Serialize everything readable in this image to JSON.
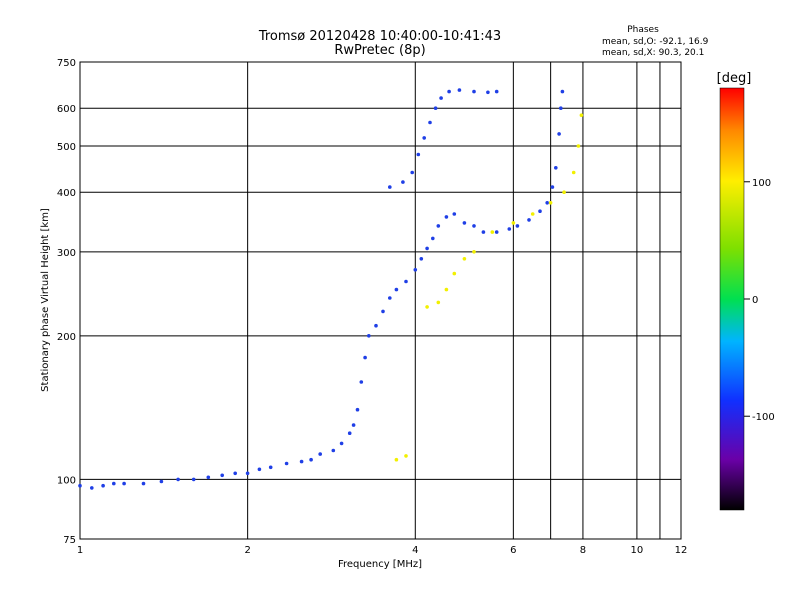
{
  "chart_data": {
    "type": "scatter",
    "title": "Tromsø 20120428 10:40:00-10:41:43",
    "subtitle": "RwPretec (8p)",
    "xlabel": "Frequency [MHz]",
    "ylabel": "Stationary phase Virtual Height [km]",
    "x_scale": "log",
    "y_scale": "log",
    "xlim": [
      1,
      12
    ],
    "ylim": [
      75,
      750
    ],
    "x_ticks": [
      1,
      2,
      4,
      6,
      8,
      10,
      12
    ],
    "x_tick_labels": [
      "1",
      "2",
      "4",
      "6",
      "8",
      "10",
      "12"
    ],
    "x_gridlines": [
      2,
      4,
      6,
      7,
      8,
      10,
      11
    ],
    "y_ticks": [
      75,
      100,
      200,
      300,
      400,
      500,
      600,
      750
    ],
    "y_tick_labels": [
      "75",
      "100",
      "200",
      "300",
      "400",
      "500",
      "600",
      "750"
    ],
    "y_gridlines": [
      100,
      200,
      300,
      400,
      500,
      600
    ],
    "grid": true,
    "phases_box": {
      "header": "Phases",
      "line1": "mean, sd,O: -92.1, 16.9",
      "line2": "mean, sd,X:  90.3, 20.1"
    },
    "colorbar": {
      "label": "[deg]",
      "min": -180,
      "max": 180,
      "ticks": [
        100,
        0,
        -100
      ],
      "tick_labels": [
        "100",
        "0",
        "-100"
      ],
      "colormap": "rainbow: black/purple (-180) → blue (-100) → cyan → green (0) → yellow (100) → orange → red (180)"
    },
    "series": [
      {
        "mode": "O",
        "phase_deg": -100,
        "color": "#1f3fe6",
        "points": [
          [
            1.0,
            97
          ],
          [
            1.05,
            96
          ],
          [
            1.1,
            97
          ],
          [
            1.15,
            98
          ],
          [
            1.2,
            98
          ],
          [
            1.3,
            98
          ],
          [
            1.4,
            99
          ],
          [
            1.5,
            100
          ],
          [
            1.6,
            100
          ],
          [
            1.7,
            101
          ],
          [
            1.8,
            102
          ],
          [
            1.9,
            103
          ],
          [
            2.0,
            103
          ],
          [
            2.1,
            105
          ],
          [
            2.2,
            106
          ],
          [
            2.35,
            108
          ],
          [
            2.5,
            109
          ],
          [
            2.6,
            110
          ],
          [
            2.7,
            113
          ],
          [
            2.85,
            115
          ],
          [
            2.95,
            119
          ],
          [
            3.05,
            125
          ],
          [
            3.1,
            130
          ],
          [
            3.15,
            140
          ],
          [
            3.2,
            160
          ],
          [
            3.25,
            180
          ],
          [
            3.3,
            200
          ],
          [
            3.4,
            210
          ],
          [
            3.5,
            225
          ],
          [
            3.6,
            240
          ],
          [
            3.7,
            250
          ],
          [
            3.85,
            260
          ],
          [
            4.0,
            275
          ],
          [
            4.1,
            290
          ],
          [
            4.2,
            305
          ],
          [
            4.3,
            320
          ],
          [
            4.4,
            340
          ],
          [
            4.55,
            355
          ],
          [
            4.7,
            360
          ],
          [
            4.9,
            345
          ],
          [
            5.1,
            340
          ],
          [
            5.3,
            330
          ],
          [
            5.6,
            330
          ],
          [
            5.9,
            335
          ],
          [
            6.1,
            340
          ],
          [
            6.4,
            350
          ],
          [
            6.7,
            365
          ],
          [
            6.9,
            380
          ],
          [
            7.05,
            410
          ],
          [
            7.15,
            450
          ],
          [
            7.25,
            530
          ],
          [
            7.3,
            600
          ],
          [
            7.35,
            650
          ],
          [
            3.6,
            410
          ],
          [
            3.8,
            420
          ],
          [
            3.95,
            440
          ],
          [
            4.05,
            480
          ],
          [
            4.15,
            520
          ],
          [
            4.25,
            560
          ],
          [
            4.35,
            600
          ],
          [
            4.45,
            630
          ],
          [
            4.6,
            650
          ],
          [
            4.8,
            655
          ],
          [
            5.1,
            650
          ],
          [
            5.4,
            648
          ],
          [
            5.6,
            650
          ]
        ]
      },
      {
        "mode": "X",
        "phase_deg": 90,
        "color": "#f2f000",
        "points": [
          [
            3.7,
            110
          ],
          [
            3.85,
            112
          ],
          [
            4.2,
            230
          ],
          [
            4.4,
            235
          ],
          [
            4.55,
            250
          ],
          [
            4.7,
            270
          ],
          [
            4.9,
            290
          ],
          [
            5.1,
            300
          ],
          [
            5.5,
            330
          ],
          [
            6.0,
            345
          ],
          [
            6.5,
            360
          ],
          [
            7.0,
            380
          ],
          [
            7.4,
            400
          ],
          [
            7.7,
            440
          ],
          [
            7.85,
            500
          ],
          [
            7.95,
            580
          ]
        ]
      }
    ]
  }
}
